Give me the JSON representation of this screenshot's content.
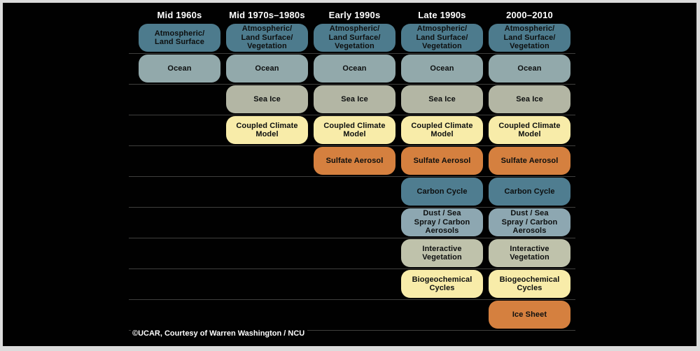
{
  "frame": {
    "background": "#010101",
    "border_color": "#dcdcdc",
    "line_color": "#3f3f3d",
    "header_text_color": "#ffffff"
  },
  "title_row": [
    "Mid 1960s",
    "Mid 1970s–1980s",
    "Early 1990s",
    "Late 1990s",
    "2000–2010"
  ],
  "credit": "©UCAR, Courtesy of Warren Washington / NCU",
  "rows": [
    {
      "id": "atmospheric-land-surface",
      "color": "#4d7b8d",
      "cells": [
        {
          "col": 0,
          "label": "Atmospheric/\nLand Surface"
        },
        {
          "col": 1,
          "label": "Atmospheric/\nLand Surface/\nVegetation"
        },
        {
          "col": 2,
          "label": "Atmospheric/\nLand Surface/\nVegetation"
        },
        {
          "col": 3,
          "label": "Atmospheric/\nLand Surface/\nVegetation"
        },
        {
          "col": 4,
          "label": "Atmospheric/\nLand Surface/\nVegetation"
        }
      ]
    },
    {
      "id": "ocean",
      "color": "#92a9ab",
      "cells": [
        {
          "col": 0,
          "label": "Ocean"
        },
        {
          "col": 1,
          "label": "Ocean"
        },
        {
          "col": 2,
          "label": "Ocean"
        },
        {
          "col": 3,
          "label": "Ocean"
        },
        {
          "col": 4,
          "label": "Ocean"
        }
      ]
    },
    {
      "id": "sea-ice",
      "color": "#b3b6a4",
      "cells": [
        {
          "col": 1,
          "label": "Sea Ice"
        },
        {
          "col": 2,
          "label": "Sea Ice"
        },
        {
          "col": 3,
          "label": "Sea Ice"
        },
        {
          "col": 4,
          "label": "Sea Ice"
        }
      ]
    },
    {
      "id": "coupled-climate-model",
      "color": "#f8eca9",
      "cells": [
        {
          "col": 1,
          "label": "Coupled Climate\nModel"
        },
        {
          "col": 2,
          "label": "Coupled Climate\nModel"
        },
        {
          "col": 3,
          "label": "Coupled Climate\nModel"
        },
        {
          "col": 4,
          "label": "Coupled Climate\nModel"
        }
      ]
    },
    {
      "id": "sulfate-aerosol",
      "color": "#d5803f",
      "cells": [
        {
          "col": 2,
          "label": "Sulfate Aerosol"
        },
        {
          "col": 3,
          "label": "Sulfate Aerosol"
        },
        {
          "col": 4,
          "label": "Sulfate Aerosol"
        }
      ]
    },
    {
      "id": "carbon-cycle",
      "color": "#4f7d90",
      "cells": [
        {
          "col": 3,
          "label": "Carbon Cycle"
        },
        {
          "col": 4,
          "label": "Carbon Cycle"
        }
      ]
    },
    {
      "id": "dust-sea-spray-carbon-aerosols",
      "color": "#8da7b1",
      "cells": [
        {
          "col": 3,
          "label": "Dust / Sea\nSpray / Carbon\nAerosols"
        },
        {
          "col": 4,
          "label": "Dust / Sea\nSpray / Carbon\nAerosols"
        }
      ]
    },
    {
      "id": "interactive-vegetation",
      "color": "#bfc2ab",
      "cells": [
        {
          "col": 3,
          "label": "Interactive\nVegetation"
        },
        {
          "col": 4,
          "label": "Interactive\nVegetation"
        }
      ]
    },
    {
      "id": "biogeochemical-cycles",
      "color": "#f8eca9",
      "cells": [
        {
          "col": 3,
          "label": "Biogeochemical\nCycles"
        },
        {
          "col": 4,
          "label": "Biogeochemical\nCycles"
        }
      ]
    },
    {
      "id": "ice-sheet",
      "color": "#d5803f",
      "cells": [
        {
          "col": 4,
          "label": "Ice Sheet"
        }
      ]
    }
  ]
}
